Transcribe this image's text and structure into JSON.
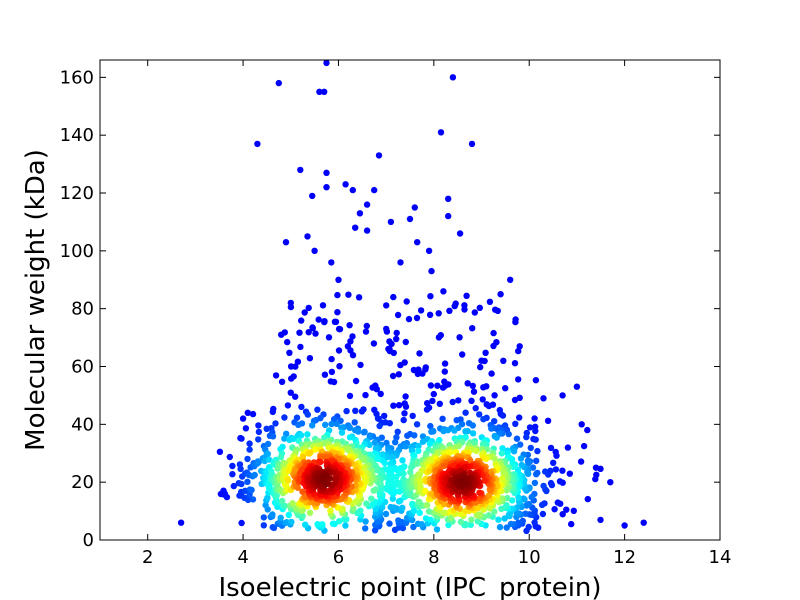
{
  "chart_data": {
    "type": "scatter",
    "title": "",
    "xlabel": "Isoelectric point (IPC_protein)",
    "ylabel": "Molecular weight (kDa)",
    "xlim": [
      1,
      14
    ],
    "ylim": [
      0,
      166
    ],
    "xticks": [
      2,
      4,
      6,
      8,
      10,
      12,
      14
    ],
    "yticks": [
      0,
      20,
      40,
      60,
      80,
      100,
      120,
      140,
      160
    ],
    "grid": false,
    "legend": "none",
    "colormap": "jet (point density)",
    "density_clusters": [
      {
        "x": 5.7,
        "y": 21
      },
      {
        "x": 8.6,
        "y": 20
      }
    ],
    "outliers": [
      [
        2.7,
        6
      ],
      [
        4.0,
        42
      ],
      [
        4.1,
        44
      ],
      [
        4.3,
        137
      ],
      [
        4.5,
        30
      ],
      [
        4.75,
        158
      ],
      [
        4.8,
        71
      ],
      [
        4.9,
        103
      ],
      [
        5.0,
        82
      ],
      [
        5.2,
        128
      ],
      [
        5.35,
        105
      ],
      [
        5.45,
        119
      ],
      [
        5.5,
        100
      ],
      [
        5.6,
        155
      ],
      [
        5.7,
        155
      ],
      [
        5.75,
        165
      ],
      [
        5.75,
        127
      ],
      [
        5.75,
        122
      ],
      [
        5.85,
        96
      ],
      [
        6.0,
        90
      ],
      [
        6.15,
        123
      ],
      [
        6.3,
        121
      ],
      [
        6.35,
        108
      ],
      [
        6.45,
        113
      ],
      [
        6.6,
        116
      ],
      [
        6.6,
        107
      ],
      [
        6.75,
        121
      ],
      [
        6.85,
        133
      ],
      [
        7.0,
        73
      ],
      [
        7.1,
        110
      ],
      [
        7.15,
        84
      ],
      [
        7.3,
        96
      ],
      [
        7.5,
        111
      ],
      [
        7.6,
        115
      ],
      [
        7.65,
        103
      ],
      [
        7.9,
        100
      ],
      [
        7.95,
        93
      ],
      [
        8.15,
        141
      ],
      [
        8.2,
        86
      ],
      [
        8.3,
        118
      ],
      [
        8.3,
        112
      ],
      [
        8.4,
        160
      ],
      [
        8.55,
        106
      ],
      [
        8.8,
        137
      ],
      [
        9.0,
        62
      ],
      [
        9.4,
        85
      ],
      [
        9.6,
        90
      ],
      [
        9.8,
        67
      ],
      [
        10.3,
        49
      ],
      [
        10.7,
        50
      ],
      [
        11.0,
        53
      ],
      [
        11.1,
        40
      ],
      [
        11.4,
        25
      ],
      [
        11.7,
        20
      ],
      [
        12.0,
        5
      ],
      [
        12.4,
        6
      ]
    ]
  }
}
